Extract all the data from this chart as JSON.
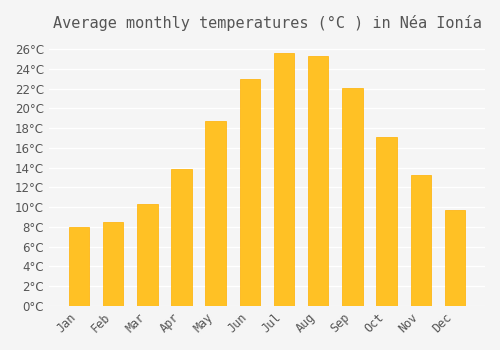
{
  "title": "Average monthly temperatures (°C ) in Néa Ionía",
  "months": [
    "Jan",
    "Feb",
    "Mar",
    "Apr",
    "May",
    "Jun",
    "Jul",
    "Aug",
    "Sep",
    "Oct",
    "Nov",
    "Dec"
  ],
  "values": [
    8.0,
    8.5,
    10.3,
    13.9,
    18.7,
    23.0,
    25.6,
    25.3,
    22.1,
    17.1,
    13.2,
    9.7
  ],
  "bar_color": "#FFC125",
  "bar_edge_color": "#FFB000",
  "background_color": "#F5F5F5",
  "grid_color": "#FFFFFF",
  "text_color": "#555555",
  "ylim": [
    0,
    27
  ],
  "yticks": [
    0,
    2,
    4,
    6,
    8,
    10,
    12,
    14,
    16,
    18,
    20,
    22,
    24,
    26
  ],
  "title_fontsize": 11,
  "tick_fontsize": 8.5
}
